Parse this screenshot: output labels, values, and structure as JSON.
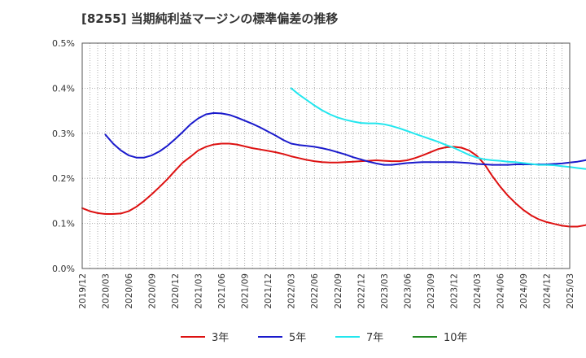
{
  "chart_data": {
    "type": "line",
    "title": "[8255]  当期純利益マージンの標準偏差の推移",
    "y_ticks": [
      "0.0%",
      "0.1%",
      "0.2%",
      "0.3%",
      "0.4%",
      "0.5%"
    ],
    "ylim": [
      0,
      0.5
    ],
    "x_ticks": [
      "2019/12",
      "2020/03",
      "2020/06",
      "2020/09",
      "2020/12",
      "2021/03",
      "2021/06",
      "2021/09",
      "2021/12",
      "2022/03",
      "2022/06",
      "2022/09",
      "2022/12",
      "2023/03",
      "2023/06",
      "2023/09",
      "2023/12",
      "2024/03",
      "2024/06",
      "2024/09",
      "2024/12",
      "2025/03"
    ],
    "grid": true,
    "legend_position": "bottom",
    "series": [
      {
        "name": "3年",
        "color": "#dd1111",
        "values": [
          [
            "2019/12",
            0.134
          ],
          [
            "2020/01",
            0.127
          ],
          [
            "2020/02",
            0.123
          ],
          [
            "2020/03",
            0.121
          ],
          [
            "2020/04",
            0.121
          ],
          [
            "2020/05",
            0.122
          ],
          [
            "2020/06",
            0.127
          ],
          [
            "2020/07",
            0.137
          ],
          [
            "2020/08",
            0.15
          ],
          [
            "2020/09",
            0.165
          ],
          [
            "2020/10",
            0.181
          ],
          [
            "2020/11",
            0.198
          ],
          [
            "2020/12",
            0.217
          ],
          [
            "2021/01",
            0.235
          ],
          [
            "2021/02",
            0.248
          ],
          [
            "2021/03",
            0.262
          ],
          [
            "2021/04",
            0.27
          ],
          [
            "2021/05",
            0.275
          ],
          [
            "2021/06",
            0.277
          ],
          [
            "2021/07",
            0.277
          ],
          [
            "2021/08",
            0.275
          ],
          [
            "2021/09",
            0.271
          ],
          [
            "2021/10",
            0.267
          ],
          [
            "2021/11",
            0.264
          ],
          [
            "2021/12",
            0.261
          ],
          [
            "2022/01",
            0.258
          ],
          [
            "2022/02",
            0.254
          ],
          [
            "2022/03",
            0.249
          ],
          [
            "2022/04",
            0.245
          ],
          [
            "2022/05",
            0.241
          ],
          [
            "2022/06",
            0.238
          ],
          [
            "2022/07",
            0.236
          ],
          [
            "2022/08",
            0.235
          ],
          [
            "2022/09",
            0.235
          ],
          [
            "2022/10",
            0.236
          ],
          [
            "2022/11",
            0.237
          ],
          [
            "2022/12",
            0.238
          ],
          [
            "2023/01",
            0.239
          ],
          [
            "2023/02",
            0.24
          ],
          [
            "2023/03",
            0.239
          ],
          [
            "2023/04",
            0.238
          ],
          [
            "2023/05",
            0.238
          ],
          [
            "2023/06",
            0.24
          ],
          [
            "2023/07",
            0.245
          ],
          [
            "2023/08",
            0.251
          ],
          [
            "2023/09",
            0.258
          ],
          [
            "2023/10",
            0.265
          ],
          [
            "2023/11",
            0.269
          ],
          [
            "2023/12",
            0.27
          ],
          [
            "2024/01",
            0.268
          ],
          [
            "2024/02",
            0.262
          ],
          [
            "2024/03",
            0.25
          ],
          [
            "2024/04",
            0.231
          ],
          [
            "2024/05",
            0.205
          ],
          [
            "2024/06",
            0.182
          ],
          [
            "2024/07",
            0.162
          ],
          [
            "2024/08",
            0.145
          ],
          [
            "2024/09",
            0.13
          ],
          [
            "2024/10",
            0.118
          ],
          [
            "2024/11",
            0.109
          ],
          [
            "2024/12",
            0.103
          ],
          [
            "2025/01",
            0.099
          ],
          [
            "2025/02",
            0.095
          ],
          [
            "2025/03",
            0.093
          ],
          [
            "2025/04",
            0.093
          ],
          [
            "2025/05",
            0.096
          ],
          [
            "2025/06",
            0.101
          ]
        ]
      },
      {
        "name": "5年",
        "color": "#1a1acc",
        "values": [
          [
            "2020/03",
            0.297
          ],
          [
            "2020/04",
            0.277
          ],
          [
            "2020/05",
            0.262
          ],
          [
            "2020/06",
            0.251
          ],
          [
            "2020/07",
            0.246
          ],
          [
            "2020/08",
            0.246
          ],
          [
            "2020/09",
            0.251
          ],
          [
            "2020/10",
            0.26
          ],
          [
            "2020/11",
            0.272
          ],
          [
            "2020/12",
            0.287
          ],
          [
            "2021/01",
            0.303
          ],
          [
            "2021/02",
            0.32
          ],
          [
            "2021/03",
            0.333
          ],
          [
            "2021/04",
            0.342
          ],
          [
            "2021/05",
            0.345
          ],
          [
            "2021/06",
            0.344
          ],
          [
            "2021/07",
            0.341
          ],
          [
            "2021/08",
            0.335
          ],
          [
            "2021/09",
            0.328
          ],
          [
            "2021/10",
            0.321
          ],
          [
            "2021/11",
            0.313
          ],
          [
            "2021/12",
            0.304
          ],
          [
            "2022/01",
            0.295
          ],
          [
            "2022/02",
            0.285
          ],
          [
            "2022/03",
            0.277
          ],
          [
            "2022/04",
            0.274
          ],
          [
            "2022/05",
            0.272
          ],
          [
            "2022/06",
            0.27
          ],
          [
            "2022/07",
            0.267
          ],
          [
            "2022/08",
            0.263
          ],
          [
            "2022/09",
            0.258
          ],
          [
            "2022/10",
            0.253
          ],
          [
            "2022/11",
            0.247
          ],
          [
            "2022/12",
            0.242
          ],
          [
            "2023/01",
            0.237
          ],
          [
            "2023/02",
            0.233
          ],
          [
            "2023/03",
            0.23
          ],
          [
            "2023/04",
            0.23
          ],
          [
            "2023/05",
            0.232
          ],
          [
            "2023/06",
            0.234
          ],
          [
            "2023/07",
            0.235
          ],
          [
            "2023/08",
            0.236
          ],
          [
            "2023/09",
            0.236
          ],
          [
            "2023/10",
            0.236
          ],
          [
            "2023/11",
            0.236
          ],
          [
            "2023/12",
            0.236
          ],
          [
            "2024/01",
            0.235
          ],
          [
            "2024/02",
            0.234
          ],
          [
            "2024/03",
            0.232
          ],
          [
            "2024/04",
            0.231
          ],
          [
            "2024/05",
            0.23
          ],
          [
            "2024/06",
            0.23
          ],
          [
            "2024/07",
            0.23
          ],
          [
            "2024/08",
            0.231
          ],
          [
            "2024/09",
            0.231
          ],
          [
            "2024/10",
            0.231
          ],
          [
            "2024/11",
            0.231
          ],
          [
            "2024/12",
            0.231
          ],
          [
            "2025/01",
            0.232
          ],
          [
            "2025/02",
            0.233
          ],
          [
            "2025/03",
            0.235
          ],
          [
            "2025/04",
            0.237
          ],
          [
            "2025/05",
            0.24
          ],
          [
            "2025/06",
            0.244
          ]
        ]
      },
      {
        "name": "7年",
        "color": "#22e6ee",
        "values": [
          [
            "2022/03",
            0.4
          ],
          [
            "2022/04",
            0.386
          ],
          [
            "2022/05",
            0.374
          ],
          [
            "2022/06",
            0.362
          ],
          [
            "2022/07",
            0.351
          ],
          [
            "2022/08",
            0.342
          ],
          [
            "2022/09",
            0.335
          ],
          [
            "2022/10",
            0.33
          ],
          [
            "2022/11",
            0.326
          ],
          [
            "2022/12",
            0.323
          ],
          [
            "2023/01",
            0.322
          ],
          [
            "2023/02",
            0.322
          ],
          [
            "2023/03",
            0.32
          ],
          [
            "2023/04",
            0.316
          ],
          [
            "2023/05",
            0.311
          ],
          [
            "2023/06",
            0.305
          ],
          [
            "2023/07",
            0.299
          ],
          [
            "2023/08",
            0.293
          ],
          [
            "2023/09",
            0.287
          ],
          [
            "2023/10",
            0.281
          ],
          [
            "2023/11",
            0.274
          ],
          [
            "2023/12",
            0.268
          ],
          [
            "2024/01",
            0.26
          ],
          [
            "2024/02",
            0.252
          ],
          [
            "2024/03",
            0.246
          ],
          [
            "2024/04",
            0.242
          ],
          [
            "2024/05",
            0.24
          ],
          [
            "2024/06",
            0.239
          ],
          [
            "2024/07",
            0.237
          ],
          [
            "2024/08",
            0.236
          ],
          [
            "2024/09",
            0.234
          ],
          [
            "2024/10",
            0.232
          ],
          [
            "2024/11",
            0.23
          ],
          [
            "2024/12",
            0.23
          ],
          [
            "2025/01",
            0.229
          ],
          [
            "2025/02",
            0.227
          ],
          [
            "2025/03",
            0.225
          ],
          [
            "2025/04",
            0.223
          ],
          [
            "2025/05",
            0.221
          ],
          [
            "2025/06",
            0.22
          ]
        ]
      },
      {
        "name": "10年",
        "color": "#228822",
        "values": []
      }
    ]
  }
}
